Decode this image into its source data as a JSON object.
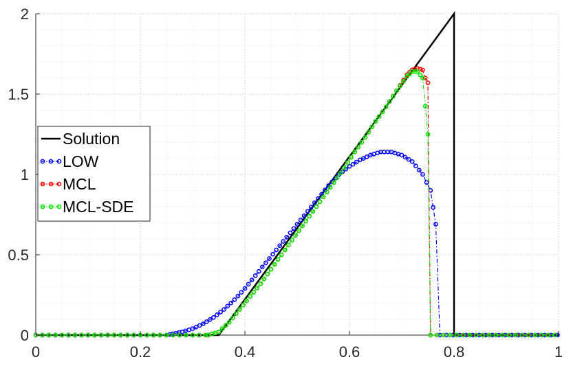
{
  "chart_data": {
    "type": "line",
    "xlim": [
      0,
      1
    ],
    "ylim": [
      0,
      2
    ],
    "x_ticks": [
      "0",
      "0.2",
      "0.4",
      "0.6",
      "0.8",
      "1"
    ],
    "y_ticks": [
      "0",
      "0.5",
      "1",
      "1.5",
      "2"
    ],
    "grid": true,
    "legend_position": "left",
    "series": [
      {
        "name": "Solution",
        "color": "#000000",
        "style": "solid",
        "marker": "none",
        "x": [
          0,
          0.35,
          0.8,
          0.8,
          1.0
        ],
        "y": [
          0,
          0,
          2.0,
          0,
          0
        ]
      },
      {
        "name": "LOW",
        "color": "#0000ff",
        "style": "dash-dot",
        "marker": "circle",
        "x": [
          0.25,
          0.28,
          0.3,
          0.32,
          0.34,
          0.36,
          0.38,
          0.4,
          0.42,
          0.44,
          0.46,
          0.48,
          0.5,
          0.52,
          0.54,
          0.56,
          0.58,
          0.6,
          0.62,
          0.64,
          0.66,
          0.68,
          0.7,
          0.72,
          0.74,
          0.755,
          0.765,
          0.773
        ],
        "y": [
          0.0,
          0.02,
          0.04,
          0.07,
          0.11,
          0.16,
          0.22,
          0.29,
          0.37,
          0.45,
          0.53,
          0.61,
          0.69,
          0.77,
          0.85,
          0.93,
          1.0,
          1.05,
          1.09,
          1.12,
          1.14,
          1.14,
          1.12,
          1.08,
          1.0,
          0.9,
          0.69,
          0.0
        ]
      },
      {
        "name": "MCL",
        "color": "#ff0000",
        "style": "dash-dot",
        "marker": "circle",
        "x": [
          0.33,
          0.35,
          0.37,
          0.39,
          0.41,
          0.43,
          0.45,
          0.47,
          0.49,
          0.51,
          0.53,
          0.55,
          0.57,
          0.59,
          0.61,
          0.63,
          0.65,
          0.67,
          0.69,
          0.71,
          0.72,
          0.73,
          0.74,
          0.745,
          0.75,
          0.755
        ],
        "y": [
          0.0,
          0.02,
          0.08,
          0.16,
          0.24,
          0.32,
          0.41,
          0.5,
          0.59,
          0.68,
          0.77,
          0.86,
          0.95,
          1.04,
          1.14,
          1.23,
          1.33,
          1.42,
          1.52,
          1.62,
          1.65,
          1.66,
          1.65,
          1.6,
          1.57,
          0.0
        ]
      },
      {
        "name": "MCL-SDE",
        "color": "#00e600",
        "style": "dash-dot",
        "marker": "circle",
        "x": [
          0.33,
          0.35,
          0.37,
          0.39,
          0.41,
          0.43,
          0.45,
          0.47,
          0.49,
          0.51,
          0.53,
          0.55,
          0.57,
          0.59,
          0.61,
          0.63,
          0.65,
          0.67,
          0.69,
          0.71,
          0.72,
          0.73,
          0.74,
          0.75,
          0.755
        ],
        "y": [
          0.0,
          0.02,
          0.08,
          0.16,
          0.24,
          0.32,
          0.41,
          0.5,
          0.59,
          0.68,
          0.77,
          0.86,
          0.95,
          1.04,
          1.14,
          1.23,
          1.33,
          1.42,
          1.52,
          1.61,
          1.64,
          1.64,
          1.6,
          1.25,
          0.0
        ]
      }
    ]
  }
}
